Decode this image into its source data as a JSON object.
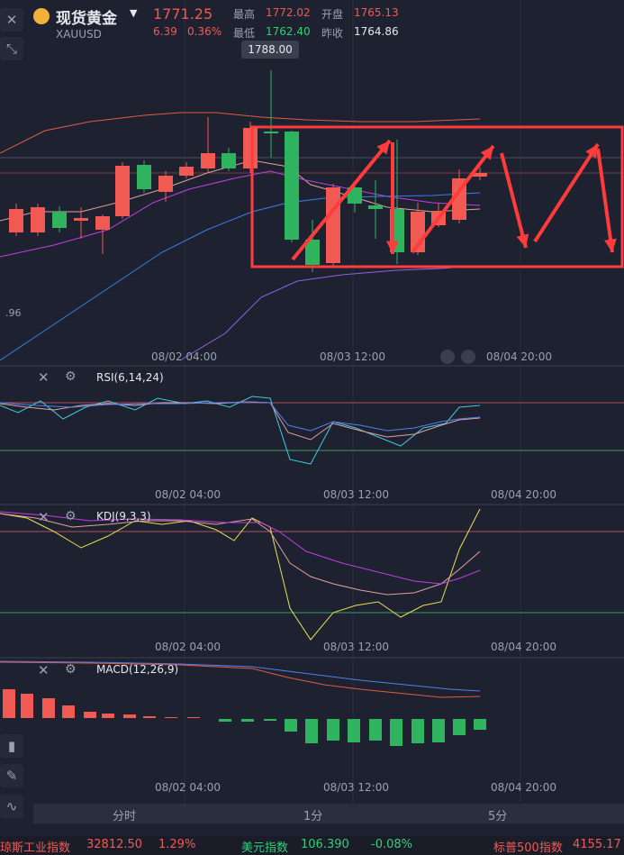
{
  "header": {
    "title": "现货黄金",
    "symbol": "XAUUSD",
    "price": "1771.25",
    "change": "6.39",
    "change_pct": "0.36%",
    "high_label": "最高",
    "high": "1772.02",
    "open_label": "开盘",
    "open": "1765.13",
    "low_label": "最低",
    "low": "1762.40",
    "prev_close_label": "昨收",
    "prev_close": "1764.86"
  },
  "main_chart": {
    "tooltip_high": "1788.00",
    "left_value": ".96",
    "time_labels": [
      "08/02 04:00",
      "08/03 12:00",
      "08/04 20:00"
    ]
  },
  "indicators": {
    "rsi": {
      "label": "RSI(6,14,24)",
      "time_labels": [
        "08/02 04:00",
        "08/03 12:00",
        "08/04 20:00"
      ]
    },
    "kdj": {
      "label": "KDJ(9,3,3)",
      "time_labels": [
        "08/02 04:00",
        "08/03 12:00",
        "08/04 20:00"
      ]
    },
    "macd": {
      "label": "MACD(12,26,9)",
      "time_labels": [
        "08/02 04:00",
        "08/03 12:00",
        "08/04 20:00"
      ]
    }
  },
  "timeframes": [
    "分时",
    "1分",
    "5分"
  ],
  "ticker": [
    {
      "name": "琼斯工业指数",
      "value": "32812.50",
      "change": "1.29%"
    },
    {
      "name": "美元指数",
      "value": "106.390",
      "change": "-0.08%"
    },
    {
      "name": "标普500指数",
      "value": "4155.17"
    }
  ],
  "colors": {
    "up": "#f05a52",
    "down": "#2fd07a",
    "annotation": "#ff3b3b"
  },
  "icons": {
    "close": "close-icon",
    "expand": "expand-icon",
    "settings": "gear-icon"
  }
}
